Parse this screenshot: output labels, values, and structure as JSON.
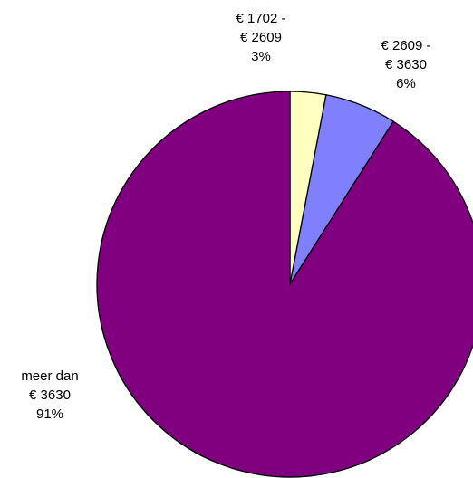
{
  "chart_data": {
    "type": "pie",
    "categories": [
      "€ 1702 - € 2609",
      "€ 2609 - € 3630",
      "meer dan € 3630"
    ],
    "values": [
      3,
      6,
      91
    ],
    "value_labels": [
      "3%",
      "6%",
      "91%"
    ],
    "colors": [
      "#ffffc0",
      "#8080ff",
      "#800080"
    ]
  }
}
